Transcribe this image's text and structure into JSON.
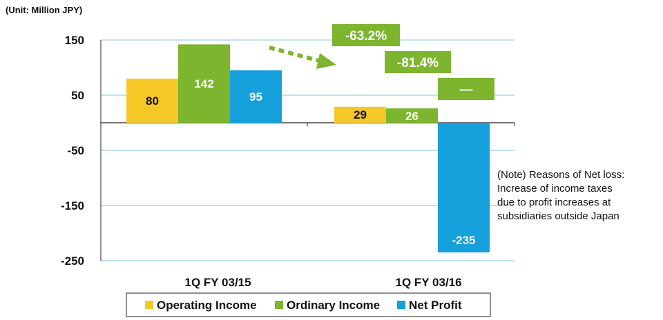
{
  "unit_label": "(Unit: Million JPY)",
  "note_lines": [
    "(Note) Reasons of Net loss:",
    "Increase of income taxes",
    "due to profit increases at",
    "subsidiaries outside Japan"
  ],
  "colors": {
    "operating": "#F5C828",
    "ordinary": "#7DB52E",
    "net": "#15A0DC",
    "gridline": "#7FC5E5",
    "arrow": "#7DB52E"
  },
  "chart_data": {
    "type": "bar",
    "categories": [
      "1Q FY 03/15",
      "1Q FY 03/16"
    ],
    "series": [
      {
        "name": "Operating Income",
        "values": [
          80,
          29
        ]
      },
      {
        "name": "Ordinary Income",
        "values": [
          142,
          26
        ]
      },
      {
        "name": "Net Profit",
        "values": [
          95,
          -235
        ]
      }
    ],
    "ylim": [
      -250,
      150
    ],
    "yticks": [
      150,
      50,
      -50,
      -150,
      -250
    ],
    "grid": true,
    "legend_position": "bottom-center",
    "change_labels": [
      "-63.2%",
      "-81.4%",
      "—"
    ]
  }
}
